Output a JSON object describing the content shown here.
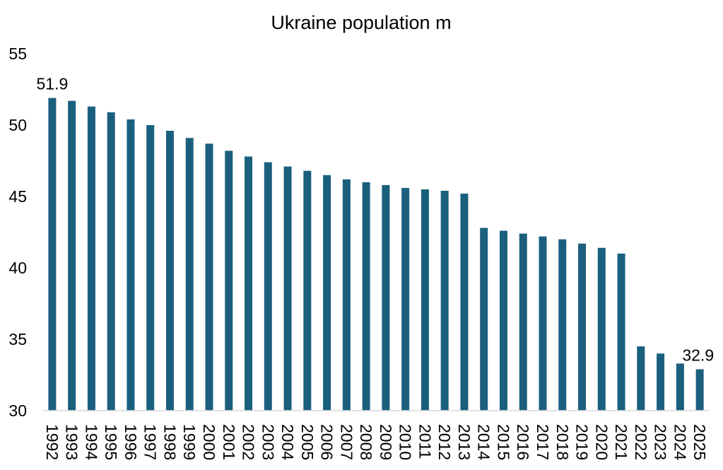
{
  "chart_data": {
    "type": "bar",
    "title": "Ukraine population m",
    "xlabel": "",
    "ylabel": "",
    "ylim": [
      30,
      55
    ],
    "yticks": [
      "30",
      "35",
      "40",
      "45",
      "50",
      "55"
    ],
    "grid": false,
    "legend": "none",
    "bar_color": "#1B5F7F",
    "categories": [
      "1992",
      "1993",
      "1994",
      "1995",
      "1996",
      "1997",
      "1998",
      "1999",
      "2000",
      "2001",
      "2002",
      "2003",
      "2004",
      "2005",
      "2006",
      "2007",
      "2008",
      "2009",
      "2010",
      "2011",
      "2012",
      "2013",
      "2014",
      "2015",
      "2016",
      "2017",
      "2018",
      "2019",
      "2020",
      "2021",
      "2022",
      "2023",
      "2024",
      "2025"
    ],
    "values": [
      51.9,
      51.7,
      51.3,
      50.9,
      50.4,
      50.0,
      49.6,
      49.1,
      48.7,
      48.2,
      47.8,
      47.4,
      47.1,
      46.8,
      46.5,
      46.2,
      46.0,
      45.8,
      45.6,
      45.5,
      45.4,
      45.2,
      42.8,
      42.6,
      42.4,
      42.2,
      42.0,
      41.7,
      41.4,
      41.0,
      34.5,
      34.0,
      33.3,
      32.9
    ],
    "data_labels": [
      {
        "category": "1992",
        "text": "51.9"
      },
      {
        "category": "2025",
        "text": "32.9"
      }
    ]
  }
}
